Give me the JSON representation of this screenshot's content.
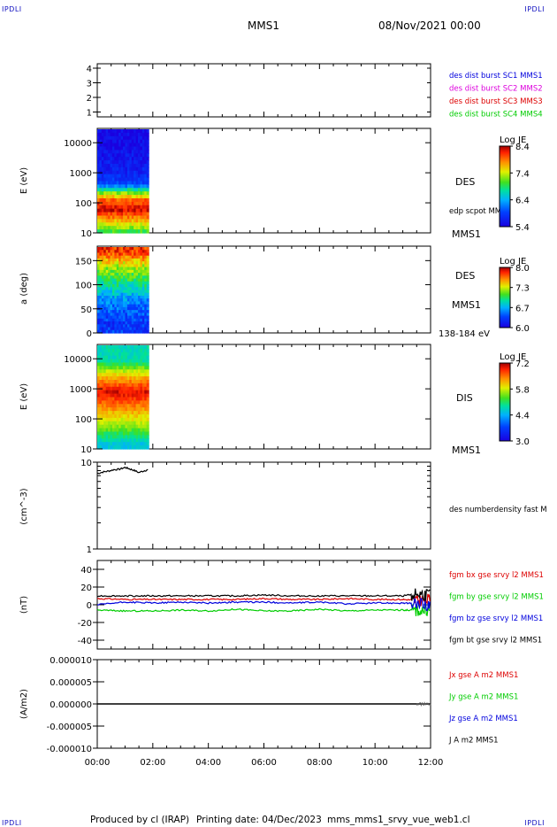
{
  "header": {
    "corner_label": "IPDLI",
    "spacecraft": "MMS1",
    "datetime": "08/Nov/2021 00:00"
  },
  "footer": {
    "produced_by": "Produced by cl (IRAP)",
    "printing_date": "Printing date: 04/Dec/2023",
    "file": "mms_mms1_srvy_vue_web1.cl"
  },
  "time_axis": {
    "ticks": [
      "00:00",
      "02:00",
      "04:00",
      "06:00",
      "08:00",
      "10:00",
      "12:00"
    ],
    "range_hours": [
      0,
      12
    ]
  },
  "colors": {
    "blue": "#0000dd",
    "magenta": "#dd00dd",
    "red": "#dd0000",
    "green": "#00cc00",
    "black": "#000000"
  },
  "panels": {
    "burst": {
      "yticks": [
        "4",
        "3",
        "2",
        "1"
      ],
      "legend": [
        {
          "text": "des dist burst SC1 MMS1",
          "color": "#0000dd"
        },
        {
          "text": "des dist burst SC2 MMS2",
          "color": "#dd00dd"
        },
        {
          "text": "des dist burst SC3 MMS3",
          "color": "#dd0000"
        },
        {
          "text": "des dist burst SC4 MMS4",
          "color": "#00cc00"
        }
      ]
    },
    "des_energy": {
      "ylabel": "E (eV)",
      "yticks": [
        "10000",
        "1000",
        "100",
        "10"
      ],
      "label": "DES",
      "note": "edp scpot MMS1",
      "sc": "MMS1",
      "colorbar": {
        "title": "Log JE",
        "ticks": [
          "8.4",
          "7.4",
          "6.4",
          "5.4"
        ]
      }
    },
    "des_pitch": {
      "ylabel": "a (deg)",
      "yticks": [
        "150",
        "100",
        "50",
        "0"
      ],
      "label": "DES",
      "sc": "MMS1",
      "energy_range": "138-184 eV",
      "colorbar": {
        "title": "Log JE",
        "ticks": [
          "8.0",
          "7.3",
          "6.7",
          "6.0"
        ]
      }
    },
    "dis_energy": {
      "ylabel": "E (eV)",
      "yticks": [
        "10000",
        "1000",
        "100",
        "10"
      ],
      "label": "DIS",
      "sc": "MMS1",
      "colorbar": {
        "title": "Log JE",
        "ticks": [
          "7.2",
          "5.8",
          "4.4",
          "3.0"
        ]
      }
    },
    "density": {
      "ylabel": "(cm^-3)",
      "yticks": [
        "10",
        "1"
      ],
      "legend": "des numberdensity fast M"
    },
    "bfield": {
      "ylabel": "(nT)",
      "yticks": [
        "40",
        "20",
        "0",
        "-20",
        "-40"
      ],
      "legend": [
        {
          "text": "fgm bx gse srvy l2 MMS1",
          "color": "#dd0000"
        },
        {
          "text": "fgm by gse srvy l2 MMS1",
          "color": "#00cc00"
        },
        {
          "text": "fgm bz gse srvy l2 MMS1",
          "color": "#0000dd"
        },
        {
          "text": "fgm bt gse srvy l2 MMS1",
          "color": "#000000"
        }
      ]
    },
    "current": {
      "ylabel": "(A/m2)",
      "yticks": [
        "0.000010",
        "0.000005",
        "0.000000",
        "-0.000005",
        "-0.000010"
      ],
      "legend": [
        {
          "text": "Jx gse A m2 MMS1",
          "color": "#dd0000"
        },
        {
          "text": "Jy gse A m2 MMS1",
          "color": "#00cc00"
        },
        {
          "text": "Jz gse A m2 MMS1",
          "color": "#0000dd"
        },
        {
          "text": "J A m2 MMS1",
          "color": "#000000"
        }
      ]
    }
  },
  "chart_data": [
    {
      "type": "heatmap",
      "ylabel": "E (eV)",
      "yscale": "log",
      "ylim": [
        10,
        30000
      ],
      "x_range_hours": [
        0,
        1.85
      ],
      "z_label": "Log JE",
      "z_range": [
        5.4,
        8.4
      ],
      "profile": [
        {
          "energy_eV": 10,
          "logJE": 6.9
        },
        {
          "energy_eV": 30,
          "logJE": 7.8
        },
        {
          "energy_eV": 60,
          "logJE": 8.3
        },
        {
          "energy_eV": 120,
          "logJE": 8.0
        },
        {
          "energy_eV": 250,
          "logJE": 7.0
        },
        {
          "energy_eV": 400,
          "logJE": 6.0
        },
        {
          "energy_eV": 1000,
          "logJE": 5.7
        },
        {
          "energy_eV": 10000,
          "logJE": 5.5
        }
      ]
    },
    {
      "type": "heatmap",
      "ylabel": "a (deg)",
      "ylim": [
        0,
        180
      ],
      "x_range_hours": [
        0,
        1.85
      ],
      "z_label": "Log JE",
      "z_range": [
        6.0,
        8.0
      ],
      "profile": [
        {
          "pitch_deg": 170,
          "logJE": 7.8
        },
        {
          "pitch_deg": 140,
          "logJE": 7.3
        },
        {
          "pitch_deg": 100,
          "logJE": 6.9
        },
        {
          "pitch_deg": 60,
          "logJE": 6.5
        },
        {
          "pitch_deg": 20,
          "logJE": 6.3
        }
      ]
    },
    {
      "type": "heatmap",
      "ylabel": "E (eV)",
      "yscale": "log",
      "ylim": [
        10,
        30000
      ],
      "x_range_hours": [
        0,
        1.85
      ],
      "z_label": "Log JE",
      "z_range": [
        3.0,
        7.2
      ],
      "profile": [
        {
          "energy_eV": 15,
          "logJE": 4.6
        },
        {
          "energy_eV": 60,
          "logJE": 5.6
        },
        {
          "energy_eV": 250,
          "logJE": 6.4
        },
        {
          "energy_eV": 800,
          "logJE": 7.0
        },
        {
          "energy_eV": 2500,
          "logJE": 6.2
        },
        {
          "energy_eV": 10000,
          "logJE": 4.8
        }
      ]
    },
    {
      "type": "line",
      "ylabel": "(cm^-3)",
      "yscale": "log",
      "ylim": [
        1,
        10
      ],
      "series": [
        {
          "name": "des numberdensity fast M",
          "color": "#000000",
          "x": [
            0.0,
            0.2,
            0.4,
            0.6,
            0.8,
            1.0,
            1.15,
            1.3,
            1.5,
            1.7,
            1.85
          ],
          "y": [
            7.4,
            7.7,
            7.9,
            8.2,
            8.3,
            8.7,
            8.4,
            8.1,
            7.6,
            8.0,
            8.2
          ]
        }
      ]
    },
    {
      "type": "line",
      "ylabel": "(nT)",
      "ylim": [
        -50,
        50
      ],
      "x": [
        0,
        1,
        2,
        3,
        4,
        5,
        6,
        7,
        8,
        9,
        10,
        11,
        11.5,
        12
      ],
      "series": [
        {
          "name": "fgm bx gse srvy l2 MMS1",
          "color": "#dd0000",
          "values": [
            7,
            6,
            6,
            6,
            6,
            6,
            7,
            6,
            6,
            7,
            6,
            6,
            5,
            6
          ]
        },
        {
          "name": "fgm by gse srvy l2 MMS1",
          "color": "#00cc00",
          "values": [
            -6,
            -7,
            -7,
            -6,
            -7,
            -5,
            -7,
            -7,
            -5,
            -7,
            -6,
            -6,
            -6,
            -7
          ]
        },
        {
          "name": "fgm bz gse srvy l2 MMS1",
          "color": "#0000dd",
          "values": [
            0,
            3,
            2,
            3,
            2,
            3,
            3,
            2,
            3,
            1,
            2,
            2,
            1,
            0
          ]
        },
        {
          "name": "fgm bt gse srvy l2 MMS1",
          "color": "#000000",
          "values": [
            10,
            10,
            10,
            10,
            10,
            10,
            11,
            10,
            10,
            10,
            10,
            10,
            12,
            11
          ]
        }
      ]
    },
    {
      "type": "line",
      "ylabel": "(A/m2)",
      "ylim": [
        -1e-05,
        1e-05
      ],
      "x": [
        0,
        2,
        4,
        6,
        8,
        10,
        12
      ],
      "series": [
        {
          "name": "J A m2 MMS1",
          "color": "#000000",
          "values": [
            0,
            0,
            0,
            0,
            0,
            0,
            0
          ]
        }
      ]
    }
  ]
}
